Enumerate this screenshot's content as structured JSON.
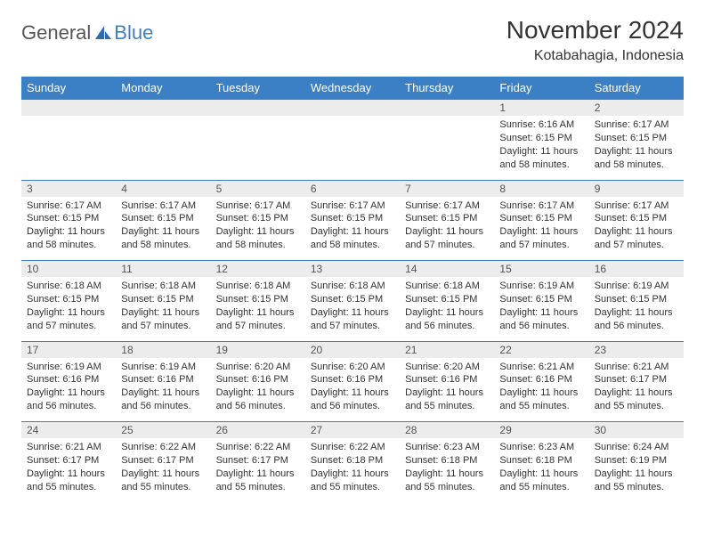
{
  "logo": {
    "textA": "General",
    "textB": "Blue",
    "chip_color": "#2f6bb0"
  },
  "header": {
    "title": "November 2024",
    "location": "Kotabahagia, Indonesia"
  },
  "colors": {
    "header_bg": "#3b7fc4",
    "header_text": "#ffffff",
    "daynum_bg": "#ececec",
    "row_border": "#3b7fc4",
    "body_text": "#333333"
  },
  "day_names": [
    "Sunday",
    "Monday",
    "Tuesday",
    "Wednesday",
    "Thursday",
    "Friday",
    "Saturday"
  ],
  "weeks": [
    [
      {
        "n": "",
        "sr": "",
        "ss": "",
        "dl": ""
      },
      {
        "n": "",
        "sr": "",
        "ss": "",
        "dl": ""
      },
      {
        "n": "",
        "sr": "",
        "ss": "",
        "dl": ""
      },
      {
        "n": "",
        "sr": "",
        "ss": "",
        "dl": ""
      },
      {
        "n": "",
        "sr": "",
        "ss": "",
        "dl": ""
      },
      {
        "n": "1",
        "sr": "Sunrise: 6:16 AM",
        "ss": "Sunset: 6:15 PM",
        "dl": "Daylight: 11 hours and 58 minutes."
      },
      {
        "n": "2",
        "sr": "Sunrise: 6:17 AM",
        "ss": "Sunset: 6:15 PM",
        "dl": "Daylight: 11 hours and 58 minutes."
      }
    ],
    [
      {
        "n": "3",
        "sr": "Sunrise: 6:17 AM",
        "ss": "Sunset: 6:15 PM",
        "dl": "Daylight: 11 hours and 58 minutes."
      },
      {
        "n": "4",
        "sr": "Sunrise: 6:17 AM",
        "ss": "Sunset: 6:15 PM",
        "dl": "Daylight: 11 hours and 58 minutes."
      },
      {
        "n": "5",
        "sr": "Sunrise: 6:17 AM",
        "ss": "Sunset: 6:15 PM",
        "dl": "Daylight: 11 hours and 58 minutes."
      },
      {
        "n": "6",
        "sr": "Sunrise: 6:17 AM",
        "ss": "Sunset: 6:15 PM",
        "dl": "Daylight: 11 hours and 58 minutes."
      },
      {
        "n": "7",
        "sr": "Sunrise: 6:17 AM",
        "ss": "Sunset: 6:15 PM",
        "dl": "Daylight: 11 hours and 57 minutes."
      },
      {
        "n": "8",
        "sr": "Sunrise: 6:17 AM",
        "ss": "Sunset: 6:15 PM",
        "dl": "Daylight: 11 hours and 57 minutes."
      },
      {
        "n": "9",
        "sr": "Sunrise: 6:17 AM",
        "ss": "Sunset: 6:15 PM",
        "dl": "Daylight: 11 hours and 57 minutes."
      }
    ],
    [
      {
        "n": "10",
        "sr": "Sunrise: 6:18 AM",
        "ss": "Sunset: 6:15 PM",
        "dl": "Daylight: 11 hours and 57 minutes."
      },
      {
        "n": "11",
        "sr": "Sunrise: 6:18 AM",
        "ss": "Sunset: 6:15 PM",
        "dl": "Daylight: 11 hours and 57 minutes."
      },
      {
        "n": "12",
        "sr": "Sunrise: 6:18 AM",
        "ss": "Sunset: 6:15 PM",
        "dl": "Daylight: 11 hours and 57 minutes."
      },
      {
        "n": "13",
        "sr": "Sunrise: 6:18 AM",
        "ss": "Sunset: 6:15 PM",
        "dl": "Daylight: 11 hours and 57 minutes."
      },
      {
        "n": "14",
        "sr": "Sunrise: 6:18 AM",
        "ss": "Sunset: 6:15 PM",
        "dl": "Daylight: 11 hours and 56 minutes."
      },
      {
        "n": "15",
        "sr": "Sunrise: 6:19 AM",
        "ss": "Sunset: 6:15 PM",
        "dl": "Daylight: 11 hours and 56 minutes."
      },
      {
        "n": "16",
        "sr": "Sunrise: 6:19 AM",
        "ss": "Sunset: 6:15 PM",
        "dl": "Daylight: 11 hours and 56 minutes."
      }
    ],
    [
      {
        "n": "17",
        "sr": "Sunrise: 6:19 AM",
        "ss": "Sunset: 6:16 PM",
        "dl": "Daylight: 11 hours and 56 minutes."
      },
      {
        "n": "18",
        "sr": "Sunrise: 6:19 AM",
        "ss": "Sunset: 6:16 PM",
        "dl": "Daylight: 11 hours and 56 minutes."
      },
      {
        "n": "19",
        "sr": "Sunrise: 6:20 AM",
        "ss": "Sunset: 6:16 PM",
        "dl": "Daylight: 11 hours and 56 minutes."
      },
      {
        "n": "20",
        "sr": "Sunrise: 6:20 AM",
        "ss": "Sunset: 6:16 PM",
        "dl": "Daylight: 11 hours and 56 minutes."
      },
      {
        "n": "21",
        "sr": "Sunrise: 6:20 AM",
        "ss": "Sunset: 6:16 PM",
        "dl": "Daylight: 11 hours and 55 minutes."
      },
      {
        "n": "22",
        "sr": "Sunrise: 6:21 AM",
        "ss": "Sunset: 6:16 PM",
        "dl": "Daylight: 11 hours and 55 minutes."
      },
      {
        "n": "23",
        "sr": "Sunrise: 6:21 AM",
        "ss": "Sunset: 6:17 PM",
        "dl": "Daylight: 11 hours and 55 minutes."
      }
    ],
    [
      {
        "n": "24",
        "sr": "Sunrise: 6:21 AM",
        "ss": "Sunset: 6:17 PM",
        "dl": "Daylight: 11 hours and 55 minutes."
      },
      {
        "n": "25",
        "sr": "Sunrise: 6:22 AM",
        "ss": "Sunset: 6:17 PM",
        "dl": "Daylight: 11 hours and 55 minutes."
      },
      {
        "n": "26",
        "sr": "Sunrise: 6:22 AM",
        "ss": "Sunset: 6:17 PM",
        "dl": "Daylight: 11 hours and 55 minutes."
      },
      {
        "n": "27",
        "sr": "Sunrise: 6:22 AM",
        "ss": "Sunset: 6:18 PM",
        "dl": "Daylight: 11 hours and 55 minutes."
      },
      {
        "n": "28",
        "sr": "Sunrise: 6:23 AM",
        "ss": "Sunset: 6:18 PM",
        "dl": "Daylight: 11 hours and 55 minutes."
      },
      {
        "n": "29",
        "sr": "Sunrise: 6:23 AM",
        "ss": "Sunset: 6:18 PM",
        "dl": "Daylight: 11 hours and 55 minutes."
      },
      {
        "n": "30",
        "sr": "Sunrise: 6:24 AM",
        "ss": "Sunset: 6:19 PM",
        "dl": "Daylight: 11 hours and 55 minutes."
      }
    ]
  ]
}
